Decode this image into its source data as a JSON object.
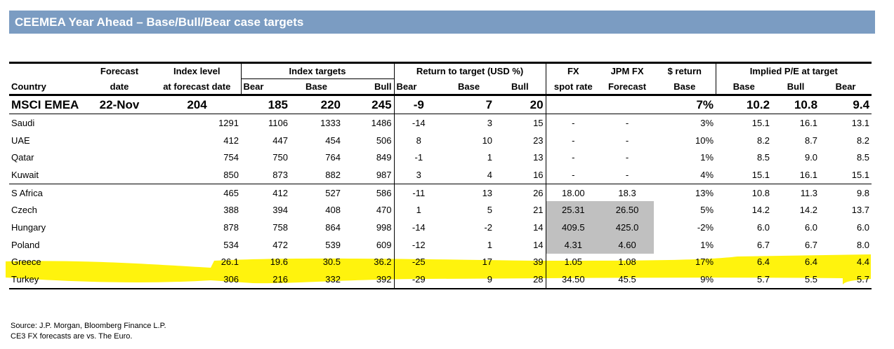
{
  "title": "CEEMEA Year Ahead – Base/Bull/Bear case targets",
  "header_row1": {
    "forecast": "Forecast",
    "index_level": "Index level",
    "index_targets": "Index targets",
    "return_to_target": "Return to target (USD %)",
    "fx": "FX",
    "jpm_fx": "JPM FX",
    "dollar_return": "$ return",
    "implied_pe": "Implied P/E at target"
  },
  "header_row2": [
    "Country",
    "date",
    "at forecast date",
    "Bear",
    "Base",
    "Bull",
    "Bear",
    "Base",
    "Bull",
    "spot rate",
    "Forecast",
    "Base",
    "Base",
    "Bull",
    "Bear"
  ],
  "msci": [
    "MSCI EMEA",
    "22-Nov",
    "204",
    "185",
    "220",
    "245",
    "-9",
    "7",
    "20",
    "",
    "",
    "7%",
    "10.2",
    "10.8",
    "9.4"
  ],
  "rows": [
    [
      "Saudi",
      "",
      "1291",
      "1106",
      "1333",
      "1486",
      "-14",
      "3",
      "15",
      "-",
      "-",
      "3%",
      "15.1",
      "16.1",
      "13.1"
    ],
    [
      "UAE",
      "",
      "412",
      "447",
      "454",
      "506",
      "8",
      "10",
      "23",
      "-",
      "-",
      "10%",
      "8.2",
      "8.7",
      "8.2"
    ],
    [
      "Qatar",
      "",
      "754",
      "750",
      "764",
      "849",
      "-1",
      "1",
      "13",
      "-",
      "-",
      "1%",
      "8.5",
      "9.0",
      "8.5"
    ],
    [
      "Kuwait",
      "",
      "850",
      "873",
      "882",
      "987",
      "3",
      "4",
      "16",
      "-",
      "-",
      "4%",
      "15.1",
      "16.1",
      "15.1"
    ],
    [
      "S Africa",
      "",
      "465",
      "412",
      "527",
      "586",
      "-11",
      "13",
      "26",
      "18.00",
      "18.3",
      "13%",
      "10.8",
      "11.3",
      "9.8"
    ],
    [
      "Czech",
      "",
      "388",
      "394",
      "408",
      "470",
      "1",
      "5",
      "21",
      "25.31",
      "26.50",
      "5%",
      "14.2",
      "14.2",
      "13.7"
    ],
    [
      "Hungary",
      "",
      "878",
      "758",
      "864",
      "998",
      "-14",
      "-2",
      "14",
      "409.5",
      "425.0",
      "-2%",
      "6.0",
      "6.0",
      "6.0"
    ],
    [
      "Poland",
      "",
      "534",
      "472",
      "539",
      "609",
      "-12",
      "1",
      "14",
      "4.31",
      "4.60",
      "1%",
      "6.7",
      "6.7",
      "8.0"
    ],
    [
      "Greece",
      "",
      "26.1",
      "19.6",
      "30.5",
      "36.2",
      "-25",
      "17",
      "39",
      "1.05",
      "1.08",
      "17%",
      "6.4",
      "6.4",
      "4.4"
    ],
    [
      "Turkey",
      "",
      "306",
      "216",
      "332",
      "392",
      "-29",
      "9",
      "28",
      "34.50",
      "45.5",
      "9%",
      "5.7",
      "5.5",
      "5.7"
    ]
  ],
  "source_lines": [
    "Source: J.P. Morgan, Bloomberg Finance L.P.",
    "CE3 FX forecasts are vs. The Euro."
  ],
  "colors": {
    "title_bar": "#7b9cc2",
    "highlight": "#fff200",
    "gray_cell": "#c0c0c0"
  }
}
